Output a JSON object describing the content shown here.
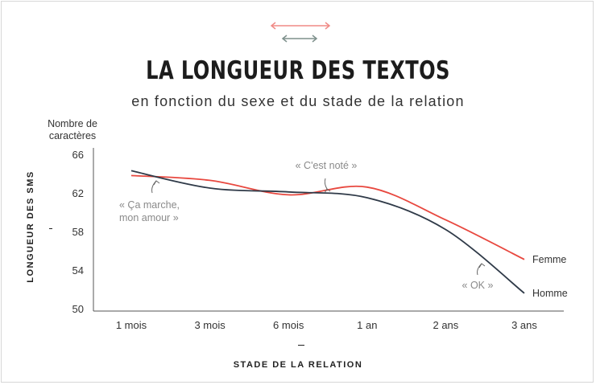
{
  "chart_data": {
    "type": "line",
    "title": "LA LONGUEUR DES TEXTOS",
    "subtitle": "en fonction du sexe et du stade de la relation",
    "unit_label": "Nombre de caractères",
    "ylabel": "LONGUEUR DES SMS",
    "xlabel": "STADE DE LA RELATION",
    "categories": [
      "1 mois",
      "3 mois",
      "6 mois",
      "1 an",
      "2 ans",
      "3 ans"
    ],
    "y_ticks": [
      50,
      54,
      58,
      62,
      66
    ],
    "ylim": [
      50,
      67
    ],
    "grid": false,
    "series": [
      {
        "name": "Femme",
        "color": "#e8483f",
        "values": [
          63.8,
          63.3,
          61.8,
          62.6,
          59.2,
          55.1
        ]
      },
      {
        "name": "Homme",
        "color": "#2f3a48",
        "values": [
          64.3,
          62.5,
          62.1,
          61.5,
          58.2,
          51.6
        ]
      }
    ],
    "annotations": [
      {
        "text": "« Ça marche,\nmon amour »",
        "x": 0.25,
        "y": 63.7
      },
      {
        "text": "« C'est noté »",
        "x": 2.5,
        "y": 61.9
      },
      {
        "text": "« OK »",
        "x": 4.6,
        "y": 55.8
      }
    ],
    "legend_colors": {
      "female": "#f08a86",
      "male": "#7e908c"
    }
  }
}
